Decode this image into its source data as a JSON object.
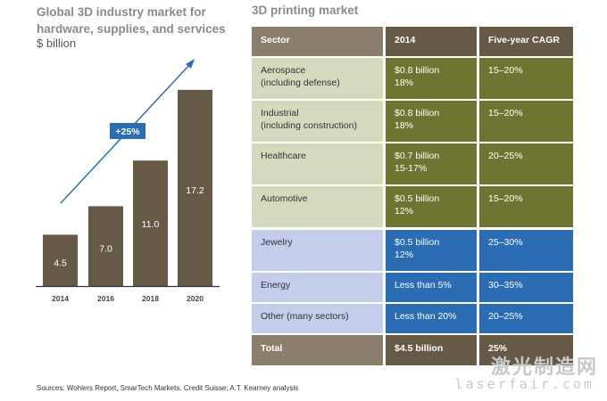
{
  "chart_data": {
    "type": "bar",
    "title": "Global 3D industry market for hardware, supplies, and services",
    "subtitle": "$ billion",
    "categories": [
      "2014",
      "2016",
      "2018",
      "2020"
    ],
    "values": [
      4.5,
      7.0,
      11.0,
      17.2
    ],
    "data_labels": [
      "4.5",
      "7.0",
      "11.0",
      "17.2"
    ],
    "annotation": "+25%",
    "colors": {
      "bar": "#665a46",
      "arrow": "#2a6db5",
      "label": "#ffffff"
    }
  },
  "table": {
    "title": "3D printing market",
    "headers": [
      "Sector",
      "2014",
      "Five-year CAGR"
    ],
    "rows": [
      {
        "sector": "Aerospace\n(including defense)",
        "value": "$0.8 billion\n18%",
        "cagr": "15–20%",
        "group": "green"
      },
      {
        "sector": "Industrial\n(including construction)",
        "value": "$0.8 billion\n18%",
        "cagr": "15–20%",
        "group": "green"
      },
      {
        "sector": "Healthcare",
        "value": "$0.7 billion\n15-17%",
        "cagr": "20–25%",
        "group": "green"
      },
      {
        "sector": "Automotive",
        "value": "$0.5 billion\n12%",
        "cagr": "15–20%",
        "group": "green"
      },
      {
        "sector": "Jewelry",
        "value": "$0.5 billion\n12%",
        "cagr": "25–30%",
        "group": "blue"
      },
      {
        "sector": "Energy",
        "value": "Less than 5%",
        "cagr": "30–35%",
        "group": "blue"
      },
      {
        "sector": "Other (many sectors)",
        "value": "Less than 20%",
        "cagr": "20–25%",
        "group": "blue"
      }
    ],
    "total": {
      "sector": "Total",
      "value": "$4.5 billion",
      "cagr": "25%"
    },
    "colors": {
      "header_light": "#8b7f6b",
      "header_dark": "#665a46",
      "green_light": "#d7d9bf",
      "green_dark": "#6f7530",
      "blue_light": "#c4cde9",
      "blue_dark": "#2a6db5"
    }
  },
  "footnote": "Sources: Wohlers Report, SmarTech Markets, Credit Suisse; A.T. Kearney analysis",
  "watermark": {
    "cn": "激光制造网",
    "url": "laserfair.com"
  }
}
